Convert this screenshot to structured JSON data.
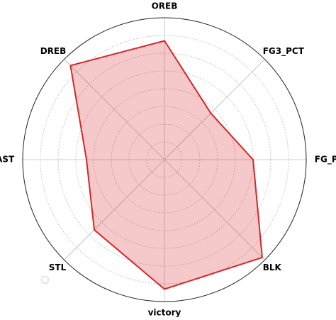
{
  "chart_data": {
    "type": "radar",
    "categories": [
      "OREB",
      "FG3_PCT",
      "FG_PCT",
      "BLK",
      "victory",
      "STL",
      "AST",
      "DREB"
    ],
    "series": [
      {
        "color": "#d62728",
        "values": [
          6.7,
          3.7,
          5.0,
          7.8,
          7.3,
          5.6,
          4.4,
          7.5
        ]
      }
    ],
    "ylim": [
      0,
      8
    ],
    "yticks": [
      1,
      2,
      3,
      4,
      5,
      6,
      7
    ],
    "grid": true
  }
}
